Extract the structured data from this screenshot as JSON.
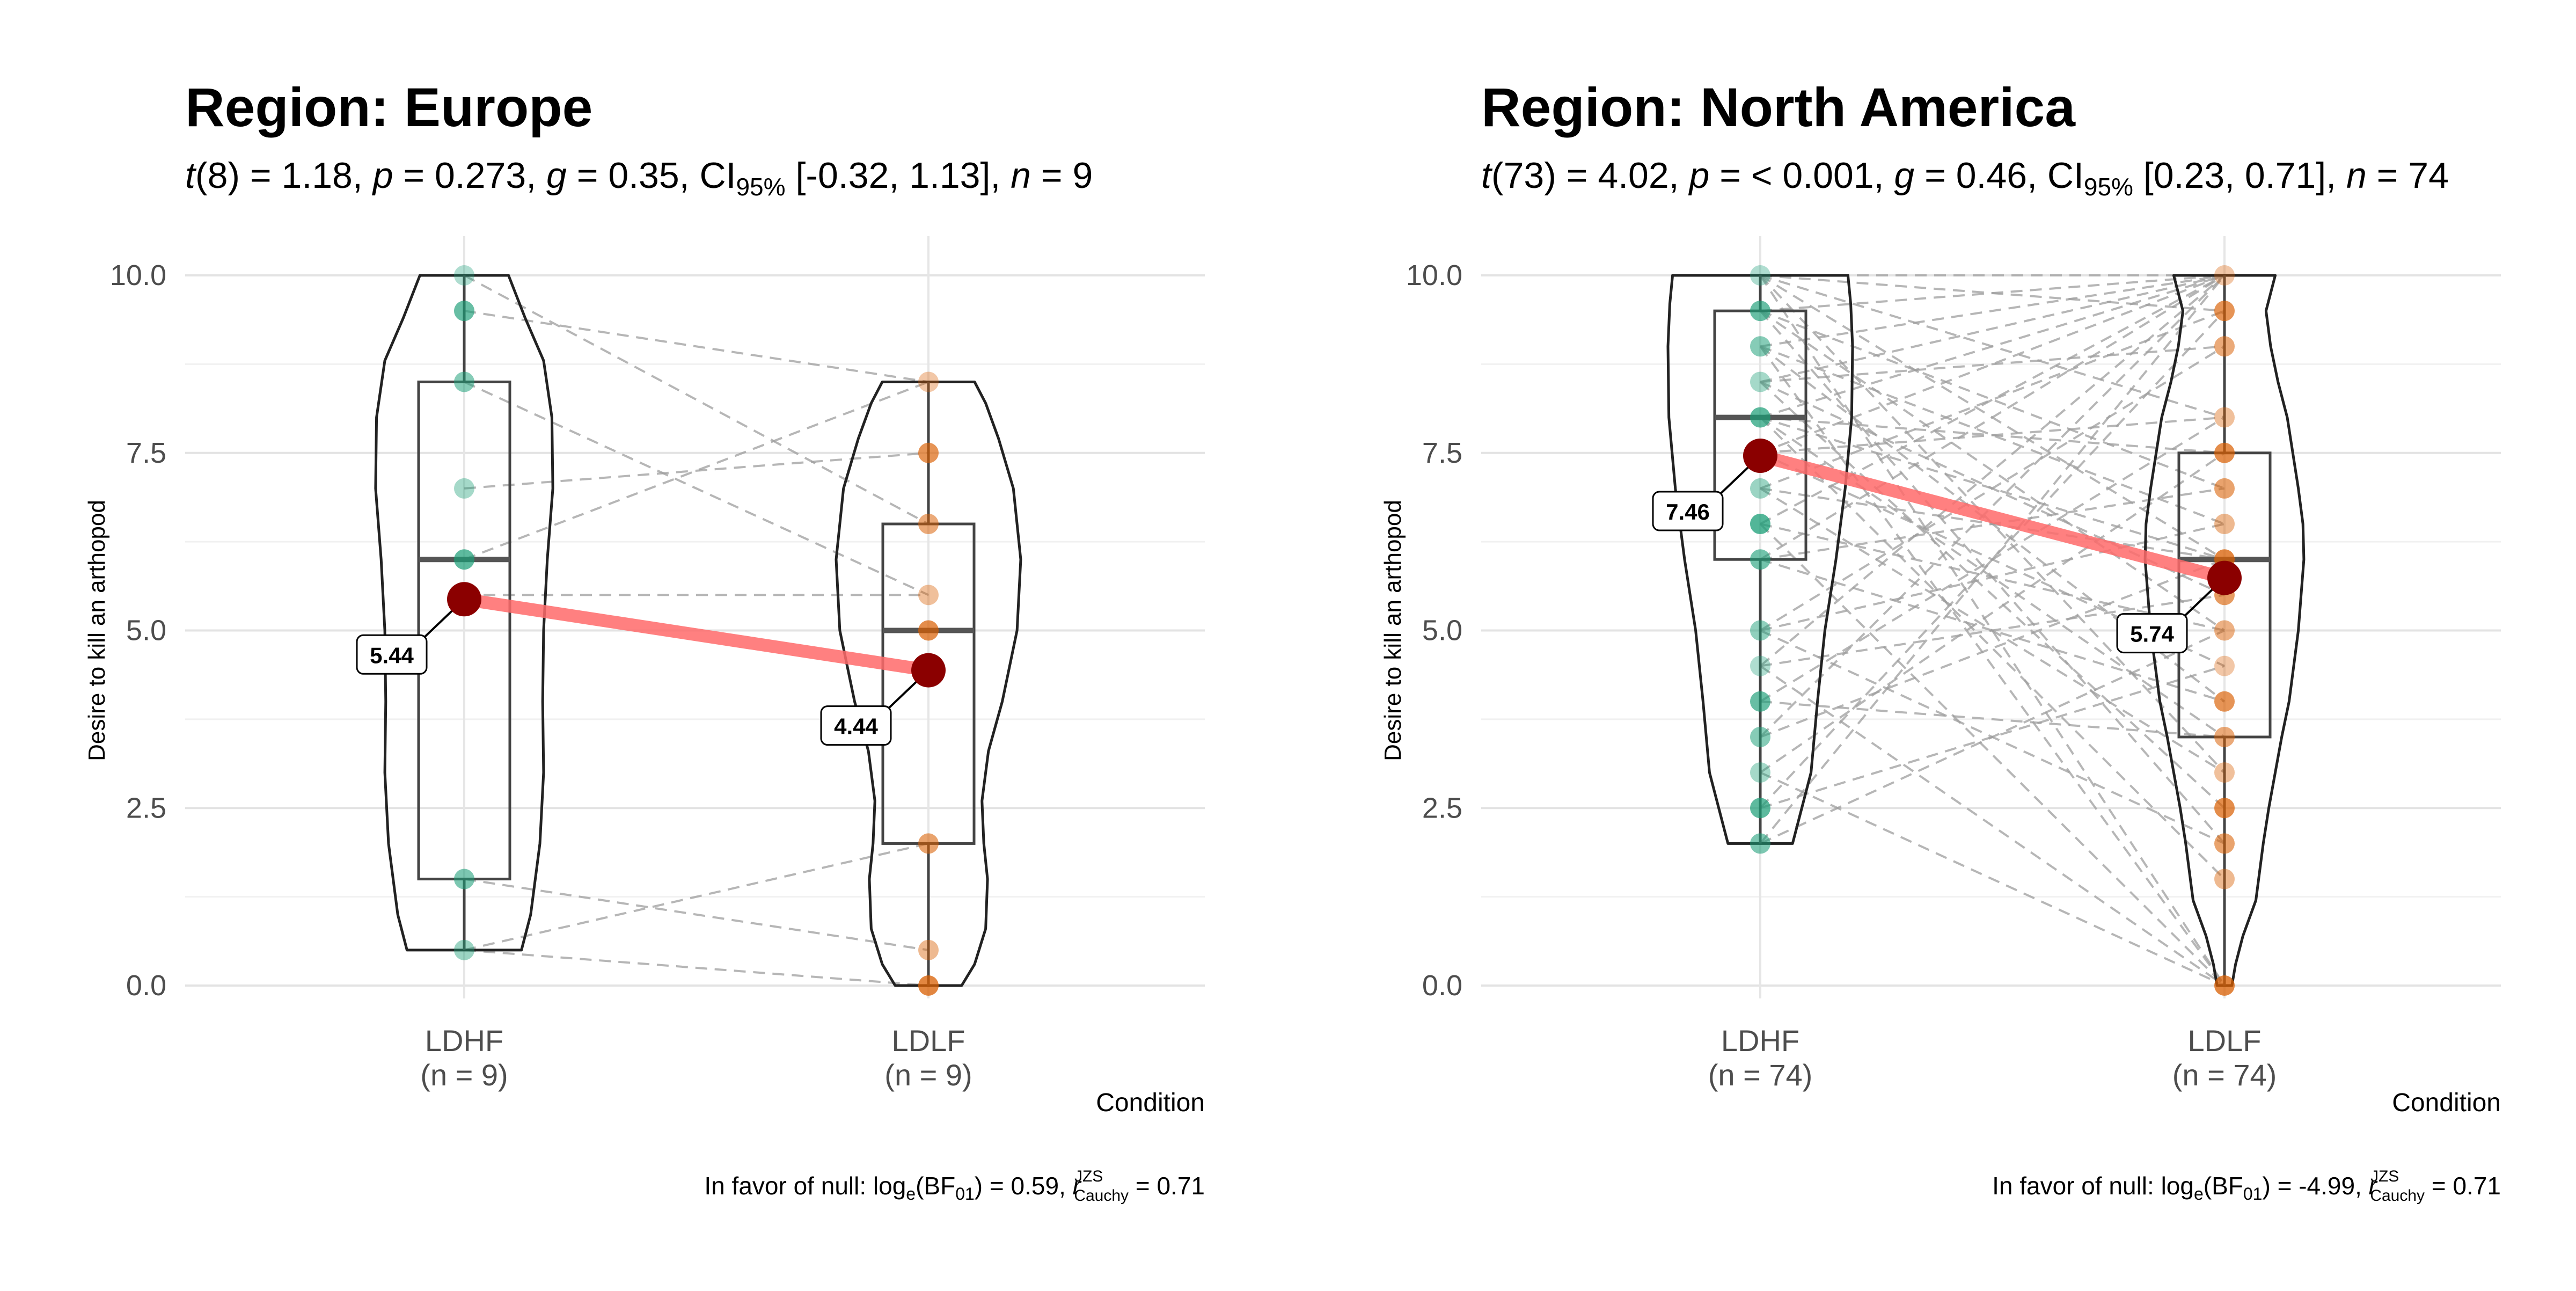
{
  "figure": {
    "y_axis_label": "Desire to kill an arthopod",
    "x_axis_label": "Condition"
  },
  "chart_data": [
    {
      "type": "violin-box-paired",
      "title": "Region: Europe",
      "subtitle": {
        "t_df": "8",
        "t_value": "1.18",
        "p": "0.273",
        "g": "0.35",
        "ci": "[-0.32, 1.13]",
        "n": "9"
      },
      "ylabel": "Desire to kill an arthopod",
      "xlabel": "Condition",
      "ylim": [
        0,
        10
      ],
      "y_ticks": [
        "0.0",
        "2.5",
        "5.0",
        "7.5",
        "10.0"
      ],
      "categories": [
        "LDHF",
        "LDLF"
      ],
      "category_counts": [
        "(n = 9)",
        "(n = 9)"
      ],
      "box": [
        {
          "q1": 1.5,
          "median": 6.0,
          "q3": 8.5,
          "whisker_low": 0.5,
          "whisker_high": 10.0
        },
        {
          "q1": 2.0,
          "median": 5.0,
          "q3": 6.5,
          "whisker_low": 0.0,
          "whisker_high": 8.5
        }
      ],
      "violin_range": [
        [
          0.5,
          10.0
        ],
        [
          0.0,
          8.5
        ]
      ],
      "violin_profile": [
        [
          [
            0.5,
            0.62
          ],
          [
            1.0,
            0.72
          ],
          [
            2.0,
            0.82
          ],
          [
            3.0,
            0.86
          ],
          [
            4.0,
            0.85
          ],
          [
            5.0,
            0.86
          ],
          [
            6.0,
            0.9
          ],
          [
            7.0,
            0.96
          ],
          [
            8.0,
            0.95
          ],
          [
            8.8,
            0.86
          ],
          [
            9.4,
            0.66
          ],
          [
            10.0,
            0.48
          ]
        ],
        [
          [
            0.0,
            0.36
          ],
          [
            0.3,
            0.5
          ],
          [
            0.8,
            0.62
          ],
          [
            1.5,
            0.64
          ],
          [
            2.0,
            0.6
          ],
          [
            2.6,
            0.58
          ],
          [
            3.3,
            0.65
          ],
          [
            4.0,
            0.8
          ],
          [
            5.0,
            0.96
          ],
          [
            6.0,
            1.0
          ],
          [
            7.0,
            0.92
          ],
          [
            7.7,
            0.76
          ],
          [
            8.2,
            0.62
          ],
          [
            8.5,
            0.5
          ]
        ]
      ],
      "points": [
        [
          10.0,
          9.5,
          8.5,
          7.0,
          6.0,
          1.5,
          0.5
        ],
        [
          8.5,
          7.5,
          6.5,
          5.5,
          5.0,
          2.0,
          0.5,
          0.0
        ]
      ],
      "pairs": [
        [
          10.0,
          6.5
        ],
        [
          9.5,
          8.5
        ],
        [
          8.5,
          5.5
        ],
        [
          7.0,
          7.5
        ],
        [
          6.0,
          8.5
        ],
        [
          5.5,
          5.5
        ],
        [
          1.5,
          0.5
        ],
        [
          0.5,
          2.0
        ],
        [
          0.5,
          0.0
        ]
      ],
      "means": [
        5.44,
        4.44
      ],
      "mean_labels": [
        "5.44",
        "4.44"
      ],
      "caption": {
        "bf": "0.59",
        "r": "0.71"
      }
    },
    {
      "type": "violin-box-paired",
      "title": "Region: North America",
      "subtitle": {
        "t_df": "73",
        "t_value": "4.02",
        "p": "< 0.001",
        "g": "0.46",
        "ci": "[0.23, 0.71]",
        "n": "74"
      },
      "ylabel": "Desire to kill an arthopod",
      "xlabel": "Condition",
      "ylim": [
        0,
        10
      ],
      "y_ticks": [
        "0.0",
        "2.5",
        "5.0",
        "7.5",
        "10.0"
      ],
      "categories": [
        "LDHF",
        "LDLF"
      ],
      "category_counts": [
        "(n = 74)",
        "(n = 74)"
      ],
      "box": [
        {
          "q1": 6.0,
          "median": 8.0,
          "q3": 9.5,
          "whisker_low": 2.0,
          "whisker_high": 10.0
        },
        {
          "q1": 3.5,
          "median": 6.0,
          "q3": 7.5,
          "whisker_low": 0.0,
          "whisker_high": 10.0
        }
      ],
      "violin_range": [
        [
          2.0,
          10.0
        ],
        [
          0.0,
          10.0
        ]
      ],
      "violin_profile": [
        [
          [
            2.0,
            0.35
          ],
          [
            2.5,
            0.45
          ],
          [
            3.0,
            0.55
          ],
          [
            4.0,
            0.62
          ],
          [
            5.0,
            0.7
          ],
          [
            6.0,
            0.82
          ],
          [
            7.0,
            0.92
          ],
          [
            8.0,
            0.99
          ],
          [
            9.0,
            1.0
          ],
          [
            9.6,
            0.98
          ],
          [
            10.0,
            0.95
          ]
        ],
        [
          [
            0.0,
            0.08
          ],
          [
            0.3,
            0.12
          ],
          [
            0.7,
            0.2
          ],
          [
            1.2,
            0.34
          ],
          [
            2.0,
            0.42
          ],
          [
            2.5,
            0.48
          ],
          [
            3.0,
            0.55
          ],
          [
            3.5,
            0.62
          ],
          [
            4.0,
            0.7
          ],
          [
            5.0,
            0.8
          ],
          [
            5.5,
            0.83
          ],
          [
            6.0,
            0.86
          ],
          [
            6.5,
            0.85
          ],
          [
            7.0,
            0.8
          ],
          [
            8.0,
            0.68
          ],
          [
            8.5,
            0.58
          ],
          [
            9.0,
            0.5
          ],
          [
            9.5,
            0.45
          ],
          [
            10.0,
            0.55
          ]
        ]
      ],
      "points": [
        [
          10.0,
          9.5,
          9.0,
          8.5,
          8.0,
          7.5,
          7.0,
          6.5,
          6.0,
          5.0,
          4.5,
          4.0,
          3.5,
          3.0,
          2.5,
          2.0
        ],
        [
          10.0,
          9.5,
          9.0,
          8.0,
          7.5,
          7.0,
          6.5,
          6.0,
          5.5,
          5.0,
          4.5,
          4.0,
          3.5,
          3.0,
          2.5,
          2.0,
          1.5,
          0.0
        ]
      ],
      "pairs": [
        [
          10.0,
          10.0
        ],
        [
          10.0,
          9.5
        ],
        [
          10.0,
          8.0
        ],
        [
          10.0,
          6.0
        ],
        [
          10.0,
          3.0
        ],
        [
          10.0,
          0.0
        ],
        [
          9.5,
          10.0
        ],
        [
          9.5,
          7.0
        ],
        [
          9.5,
          5.0
        ],
        [
          9.5,
          2.0
        ],
        [
          9.0,
          10.0
        ],
        [
          9.0,
          6.5
        ],
        [
          9.0,
          4.0
        ],
        [
          9.0,
          0.0
        ],
        [
          8.5,
          10.0
        ],
        [
          8.5,
          9.0
        ],
        [
          8.5,
          5.5
        ],
        [
          8.5,
          2.5
        ],
        [
          8.0,
          10.0
        ],
        [
          8.0,
          7.5
        ],
        [
          8.0,
          6.0
        ],
        [
          8.0,
          3.5
        ],
        [
          8.0,
          1.5
        ],
        [
          7.5,
          10.0
        ],
        [
          7.5,
          8.0
        ],
        [
          7.5,
          4.5
        ],
        [
          7.0,
          9.5
        ],
        [
          7.0,
          6.0
        ],
        [
          7.0,
          3.0
        ],
        [
          6.5,
          10.0
        ],
        [
          6.5,
          5.0
        ],
        [
          6.5,
          0.0
        ],
        [
          6.0,
          10.0
        ],
        [
          6.0,
          7.0
        ],
        [
          6.0,
          4.0
        ],
        [
          5.0,
          9.0
        ],
        [
          5.0,
          6.5
        ],
        [
          5.0,
          2.0
        ],
        [
          4.5,
          10.0
        ],
        [
          4.5,
          5.5
        ],
        [
          4.5,
          0.0
        ],
        [
          4.0,
          8.0
        ],
        [
          4.0,
          3.5
        ],
        [
          3.5,
          10.0
        ],
        [
          3.5,
          6.0
        ],
        [
          3.0,
          7.5
        ],
        [
          3.0,
          0.0
        ],
        [
          2.5,
          9.5
        ],
        [
          2.5,
          4.5
        ],
        [
          2.0,
          10.0
        ],
        [
          2.0,
          5.0
        ]
      ],
      "means": [
        7.46,
        5.74
      ],
      "mean_labels": [
        "7.46",
        "5.74"
      ],
      "caption": {
        "bf": "-4.99",
        "r": "0.71"
      }
    }
  ],
  "colors": {
    "group1": "#1B9E77",
    "group2": "#D95F02",
    "mean_point": "#8B0000",
    "mean_line": "#FF6B6B",
    "pair_line": "#9E9E9E",
    "grid": "#E6E6E6"
  }
}
